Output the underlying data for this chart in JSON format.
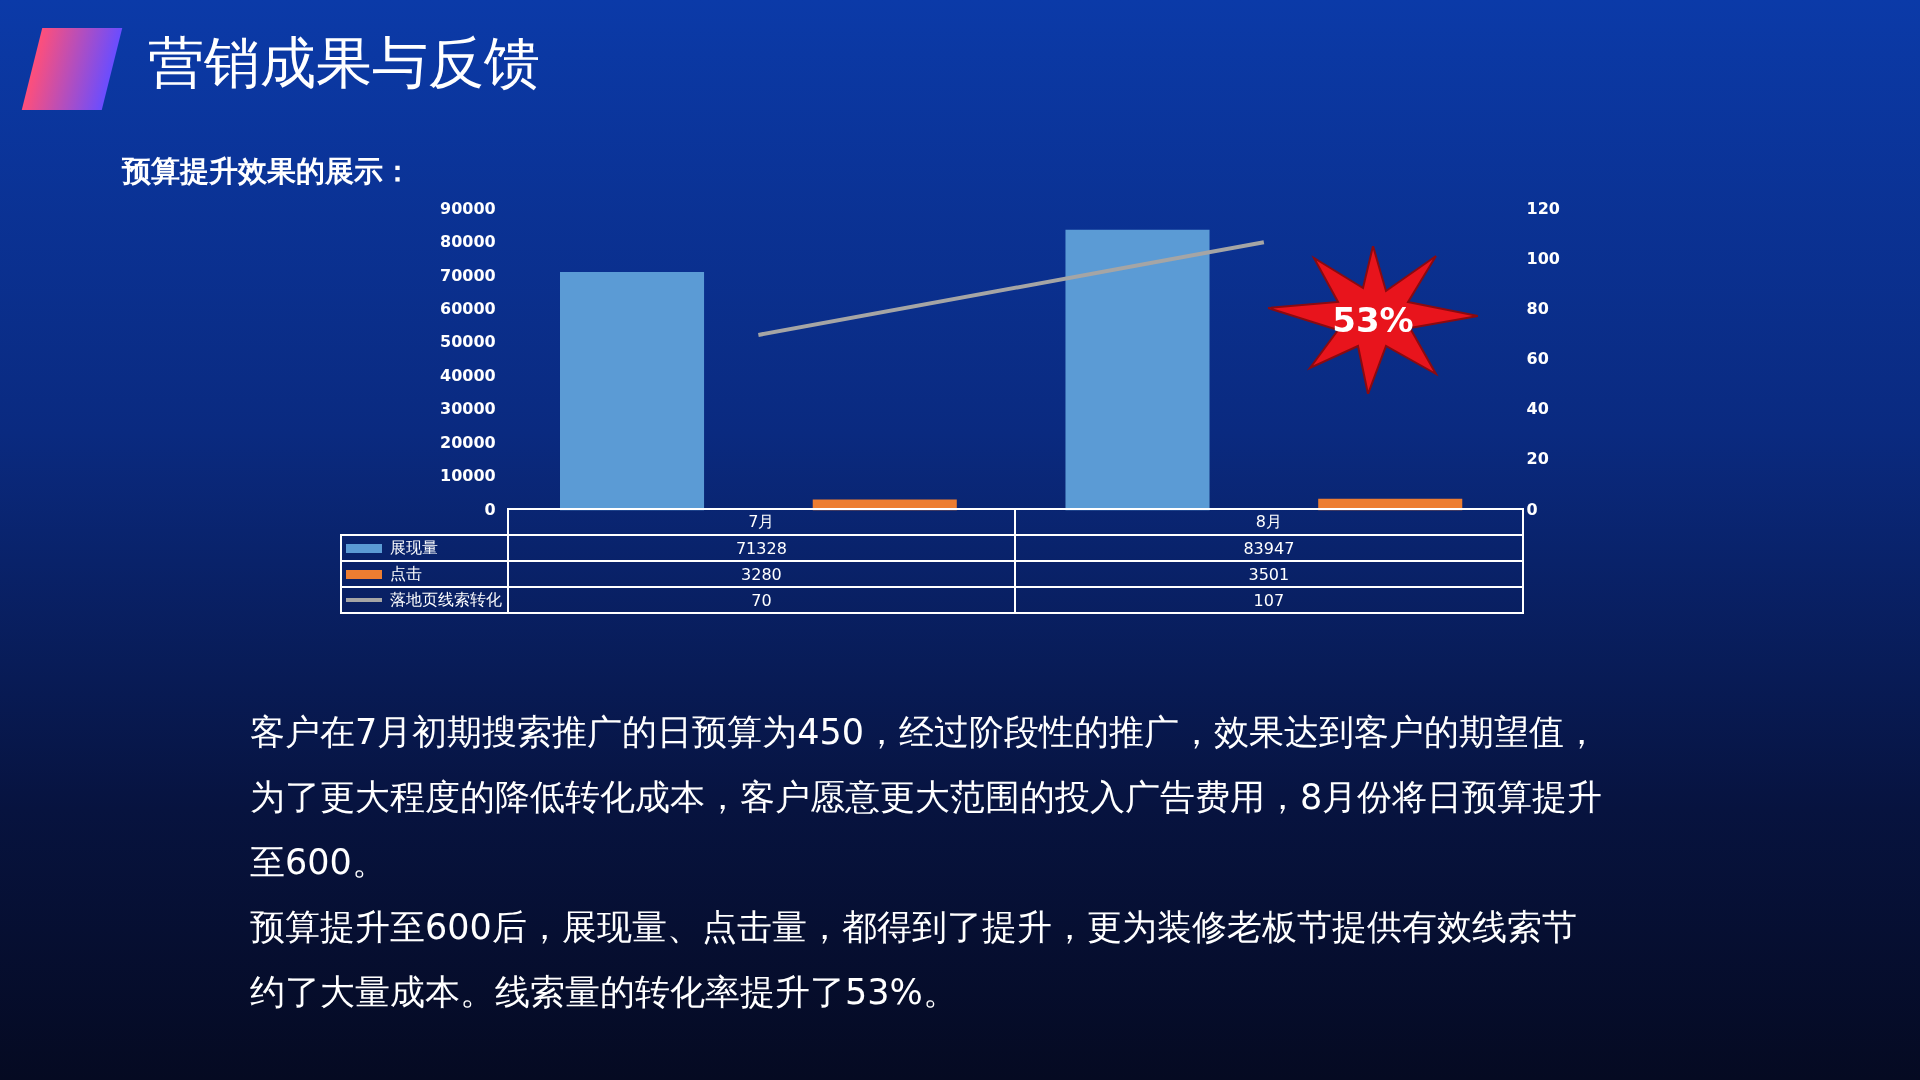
{
  "chart_data": {
    "type": "bar",
    "title": "营销成果与反馈",
    "subtitle": "预算提升效果的展示：",
    "categories": [
      "7月",
      "8月"
    ],
    "series": [
      {
        "name": "展现量",
        "color": "#5b9bd5",
        "values": [
          71328,
          83947
        ]
      },
      {
        "name": "点击",
        "color": "#ed7d31",
        "values": [
          3280,
          3501
        ]
      },
      {
        "name": "落地页线索转化",
        "color": "#a5a5a5",
        "type": "line",
        "axis": "y2",
        "values": [
          70,
          107
        ]
      }
    ],
    "ylim": [
      0,
      90000
    ],
    "yticks": [
      0,
      10000,
      20000,
      30000,
      40000,
      50000,
      60000,
      70000,
      80000,
      90000
    ],
    "y2lim": [
      0,
      120
    ],
    "y2ticks": [
      0,
      20,
      40,
      60,
      80,
      100,
      120
    ],
    "legend": "bottom",
    "data_labels": true,
    "annotations": [
      "53%",
      "客户在7月初期搜索推广的日预算为450，经过阶段性的推广，效果达到客户的期望值，为了更大程度的降低转化成本，客户愿意更大范围的投入广告费用，8月份将日预算提升至600。",
      "预算提升至600后，展现量、点击量，都得到了提升，更为装修老板节提供有效线索节约了大量成本。线索量的转化率提升了53%。"
    ]
  }
}
